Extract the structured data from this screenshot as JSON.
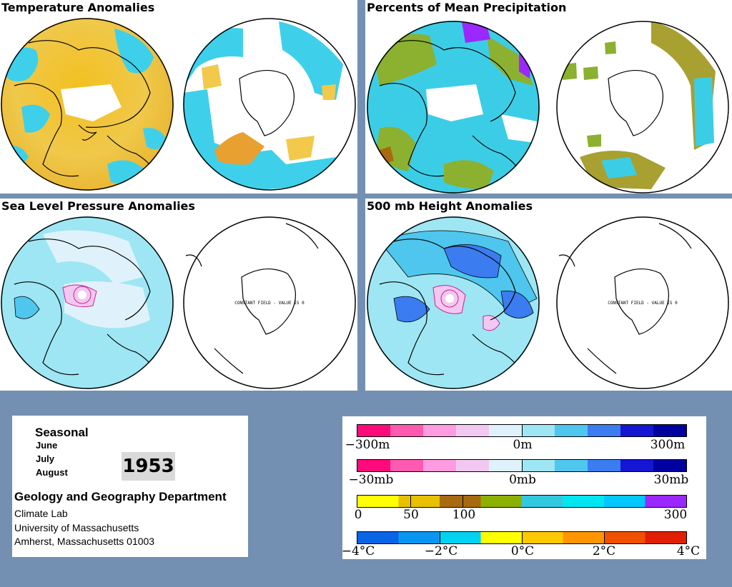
{
  "panels": [
    {
      "id": "temp",
      "title": "Temperature Anomalies"
    },
    {
      "id": "precip",
      "title": "Percents of Mean Precipitation"
    },
    {
      "id": "slp",
      "title": "Sea Level Pressure Anomalies",
      "constant_note": "CONSTANT FIELD - VALUE IS 0"
    },
    {
      "id": "height",
      "title": "500 mb Height Anomalies",
      "constant_note": "CONSTANT FIELD - VALUE IS 0"
    }
  ],
  "info": {
    "season": "Seasonal",
    "months": [
      "June",
      "July",
      "August"
    ],
    "year": "1953",
    "department": "Geology and Geography Department",
    "address": [
      "Climate Lab",
      "University of Massachusetts",
      "Amherst, Massachusetts 01003"
    ]
  },
  "legends": [
    {
      "id": "height-legend",
      "labels": [
        "−300m",
        "0m",
        "300m"
      ],
      "colors": [
        "#ff0a7a",
        "#ff5ab0",
        "#ff9be0",
        "#f2c8f0",
        "#dff2fb",
        "#9fe6f4",
        "#4fc6ee",
        "#3b7cf0",
        "#1515d4",
        "#0000a0"
      ]
    },
    {
      "id": "slp-legend",
      "labels": [
        "−30mb",
        "0mb",
        "30mb"
      ],
      "colors": [
        "#ff0a7a",
        "#ff5ab0",
        "#ff9be0",
        "#f2c8f0",
        "#dff2fb",
        "#9fe6f4",
        "#4fc6ee",
        "#3b7cf0",
        "#1515d4",
        "#0000a0"
      ]
    },
    {
      "id": "precip-legend",
      "labels": [
        "0",
        "50",
        "100",
        "300"
      ],
      "colors": [
        "#ffff00",
        "#e8c000",
        "#a86a10",
        "#8cb000",
        "#32c8e0",
        "#00e6f0",
        "#00c8ff",
        "#9a28ff"
      ]
    },
    {
      "id": "temp-legend",
      "labels": [
        "−4°C",
        "−2°C",
        "0°C",
        "2°C",
        "4°C"
      ],
      "colors": [
        "#0a64e6",
        "#0a96f0",
        "#00d2f0",
        "#ffff00",
        "#ffc800",
        "#ff9600",
        "#f05000",
        "#e01e00"
      ]
    }
  ]
}
